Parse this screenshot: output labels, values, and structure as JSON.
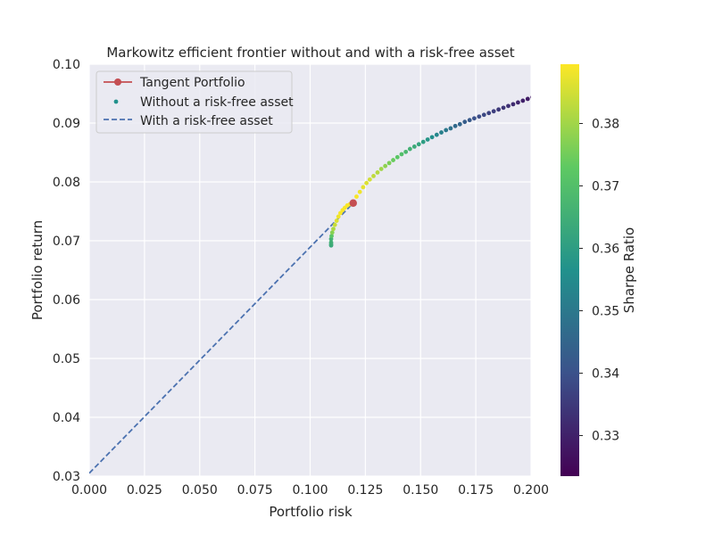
{
  "chart_data": {
    "type": "scatter",
    "title": "Markowitz efficient frontier without and with a risk-free asset",
    "xlabel": "Portfolio risk",
    "ylabel": "Portfolio return",
    "xlim": [
      0.0,
      0.2
    ],
    "ylim": [
      0.03,
      0.1
    ],
    "xticks": [
      "0.000",
      "0.025",
      "0.050",
      "0.075",
      "0.100",
      "0.125",
      "0.150",
      "0.175",
      "0.200"
    ],
    "yticks": [
      "0.03",
      "0.04",
      "0.05",
      "0.06",
      "0.07",
      "0.08",
      "0.09",
      "0.10"
    ],
    "grid": true,
    "legend": {
      "placement": "top-left",
      "entries": [
        "Tangent Portfolio",
        "Without a risk-free asset",
        "With a risk-free asset"
      ]
    },
    "colorbar": {
      "label": "Sharpe Ratio",
      "range": [
        0.3235,
        0.3895
      ],
      "ticks": [
        "0.33",
        "0.34",
        "0.35",
        "0.36",
        "0.37",
        "0.38"
      ],
      "colormap": "viridis"
    },
    "series": [
      {
        "name": "Tangent Portfolio",
        "kind": "marker",
        "color": "#c44e52",
        "x": [
          0.1195
        ],
        "y": [
          0.0764
        ]
      },
      {
        "name": "Without a risk-free asset",
        "kind": "scatter",
        "x": [
          0.1095,
          0.1095,
          0.1095,
          0.1095,
          0.1097,
          0.11,
          0.1105,
          0.1112,
          0.112,
          0.1128,
          0.1137,
          0.1147,
          0.1157,
          0.1168,
          0.118,
          0.1195,
          0.121,
          0.1225,
          0.124,
          0.1255,
          0.127,
          0.1287,
          0.1305,
          0.1322,
          0.134,
          0.1358,
          0.1376,
          0.1395,
          0.1414,
          0.1433,
          0.1452,
          0.1472,
          0.1492,
          0.1512,
          0.1532,
          0.1552,
          0.1573,
          0.1594,
          0.1615,
          0.1636,
          0.1657,
          0.1678,
          0.17,
          0.1722,
          0.1743,
          0.1765,
          0.1787,
          0.1809,
          0.1831,
          0.1853,
          0.1875,
          0.1897,
          0.1919,
          0.1941,
          0.1963,
          0.1985,
          0.2007
        ],
        "y": [
          0.0692,
          0.0694,
          0.0697,
          0.0703,
          0.0708,
          0.0714,
          0.072,
          0.0727,
          0.0734,
          0.0741,
          0.0747,
          0.0752,
          0.0756,
          0.076,
          0.0762,
          0.0764,
          0.0775,
          0.0783,
          0.0791,
          0.0798,
          0.0804,
          0.081,
          0.0816,
          0.0822,
          0.0827,
          0.0832,
          0.0837,
          0.0842,
          0.0847,
          0.0851,
          0.0856,
          0.086,
          0.0864,
          0.0868,
          0.0872,
          0.0876,
          0.088,
          0.0884,
          0.0888,
          0.0891,
          0.0895,
          0.0898,
          0.0902,
          0.0905,
          0.0908,
          0.0911,
          0.0914,
          0.0917,
          0.092,
          0.0923,
          0.0926,
          0.0929,
          0.0932,
          0.0935,
          0.0938,
          0.0941,
          0.0944
        ],
        "sharpe": [
          0.363,
          0.364,
          0.365,
          0.366,
          0.372,
          0.377,
          0.381,
          0.384,
          0.386,
          0.388,
          0.389,
          0.389,
          0.389,
          0.389,
          0.389,
          0.389,
          0.389,
          0.388,
          0.387,
          0.386,
          0.385,
          0.383,
          0.382,
          0.38,
          0.378,
          0.376,
          0.374,
          0.372,
          0.37,
          0.368,
          0.366,
          0.364,
          0.362,
          0.36,
          0.358,
          0.356,
          0.354,
          0.352,
          0.35,
          0.348,
          0.346,
          0.345,
          0.343,
          0.342,
          0.34,
          0.339,
          0.338,
          0.337,
          0.336,
          0.335,
          0.334,
          0.333,
          0.332,
          0.331,
          0.33,
          0.329,
          0.328
        ]
      },
      {
        "name": "With a risk-free asset",
        "kind": "dashed-line",
        "color": "#4c72b0",
        "x": [
          0.0,
          0.1195
        ],
        "y": [
          0.0305,
          0.0764
        ]
      }
    ]
  }
}
